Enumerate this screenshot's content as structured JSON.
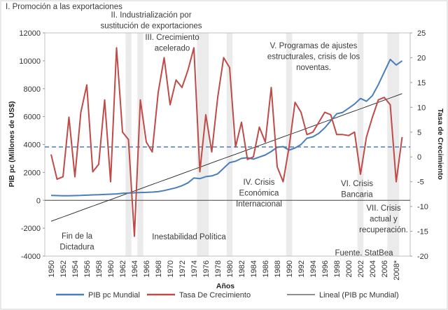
{
  "chart_data": {
    "type": "line",
    "x_label": "Años",
    "y_label": "PIB pc (Millones de US$)",
    "y2_label": "Tasa de Crecimiento",
    "categories": [
      "1950",
      null,
      "1952",
      null,
      "1954",
      null,
      "1956",
      null,
      "1958",
      null,
      "1960",
      null,
      "1962",
      null,
      "1964",
      null,
      "1966",
      null,
      "1968",
      null,
      "1970",
      null,
      "1972",
      null,
      "1974",
      null,
      "1976",
      null,
      "1978",
      null,
      "1980",
      null,
      "1982",
      null,
      "1984",
      null,
      "1986",
      null,
      "1988",
      null,
      "1990",
      null,
      "1992",
      null,
      "1994",
      null,
      "1996",
      null,
      "1998",
      null,
      "2000",
      null,
      "2002",
      null,
      "2004",
      null,
      "2006",
      null,
      "2008*",
      null
    ],
    "series": [
      {
        "name": "PIB pc Mundial",
        "color": "#4a7ebb",
        "axis": "y",
        "values": [
          350,
          340,
          330,
          330,
          340,
          350,
          370,
          390,
          400,
          420,
          440,
          460,
          500,
          520,
          540,
          560,
          570,
          590,
          620,
          700,
          800,
          900,
          1050,
          1250,
          1600,
          1550,
          1700,
          1750,
          1900,
          2300,
          2700,
          2800,
          3000,
          3050,
          2950,
          3100,
          3250,
          3500,
          3800,
          3850,
          3600,
          3750,
          4000,
          4450,
          4550,
          4800,
          5200,
          5700,
          6200,
          6300,
          6600,
          6900,
          7300,
          7100,
          7500,
          8300,
          9200,
          10100,
          9700,
          10000
        ]
      },
      {
        "name": "Tasa De Crecimiento",
        "color": "#be4b48",
        "axis": "y2",
        "values": [
          0.5,
          -4.5,
          -4,
          8,
          -4,
          9,
          14.5,
          -3,
          -1.5,
          11.5,
          -5,
          22,
          5,
          3.5,
          -16,
          11.5,
          3,
          1,
          13,
          20,
          10.5,
          15.5,
          14,
          17.5,
          22,
          -3,
          8.5,
          1,
          12,
          20,
          18,
          2,
          7,
          -0.5,
          0,
          6,
          3,
          14,
          -2,
          -5,
          2,
          11,
          9,
          4.5,
          5,
          7,
          9,
          8.5,
          4.5,
          4.5,
          4.3,
          5,
          -3.5,
          4,
          8,
          11.5,
          12,
          10.5,
          -5,
          4
        ]
      },
      {
        "name": "Lineal (PIB pc Mundial)",
        "color": "#222222",
        "axis": "y",
        "values": [
          -1500,
          -1345,
          -1190,
          -1035,
          -880,
          -725,
          -570,
          -415,
          -260,
          -105,
          50,
          205,
          360,
          515,
          670,
          825,
          980,
          1135,
          1290,
          1445,
          1600,
          1755,
          1910,
          2065,
          2220,
          2375,
          2530,
          2685,
          2840,
          2995,
          3150,
          3305,
          3460,
          3615,
          3770,
          3925,
          4080,
          4235,
          4390,
          4545,
          4700,
          4855,
          5010,
          5165,
          5320,
          5475,
          5630,
          5785,
          5940,
          6095,
          6250,
          6405,
          6560,
          6715,
          6870,
          7025,
          7180,
          7335,
          7490,
          7645
        ]
      }
    ],
    "reference_line": {
      "value": 2,
      "axis": "y2",
      "color": "#4a7ebb",
      "dashed": true
    },
    "shaded_categories": [
      13,
      15,
      25,
      26,
      30,
      40,
      52,
      57,
      58
    ],
    "ylim": [
      -4000,
      12000
    ],
    "yticks": [
      -4000,
      -2000,
      0,
      2000,
      4000,
      6000,
      8000,
      10000,
      12000
    ],
    "y2lim": [
      -20,
      25
    ],
    "y2ticks": [
      -20,
      -15,
      -10,
      -5,
      0,
      5,
      10,
      15,
      20,
      25
    ],
    "legend": "bottom",
    "annotations": [
      [
        "I. Promoción a las exportaciones"
      ],
      [
        "II. Industrialización por",
        "sustitución de exportaciones"
      ],
      [
        "III. Crecimiento",
        "acelerado"
      ],
      [
        "V. Programas de ajustes",
        "estructurales, crisis de los",
        "noventas."
      ],
      [
        "IV. Crisis",
        "Económica",
        "Internacional"
      ],
      [
        "VI. Crisis",
        "Bancaria"
      ],
      [
        "VII. Crisis",
        "actual y",
        "recuperación."
      ],
      [
        "Fin de la",
        "Dictadura"
      ],
      [
        "Inestabilidad Política"
      ],
      [
        "Fuente. StatBea"
      ]
    ]
  }
}
